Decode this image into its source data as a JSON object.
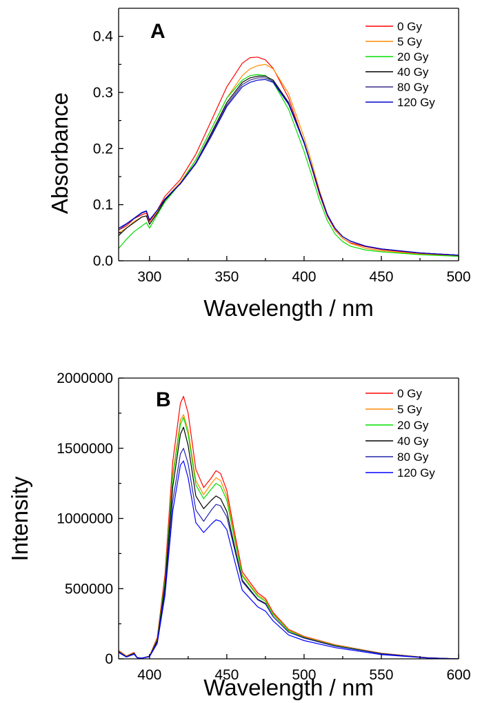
{
  "chart_data": [
    {
      "type": "line",
      "panel_label": "A",
      "xlabel": "Wavelength / nm",
      "ylabel": "Absorbance",
      "xlim": [
        280,
        500
      ],
      "ylim": [
        0,
        0.45
      ],
      "x_ticks": [
        300,
        350,
        400,
        450,
        500
      ],
      "x_tick_labels": [
        "300",
        "350",
        "400",
        "450",
        "500"
      ],
      "y_ticks": [
        0.0,
        0.1,
        0.2,
        0.3,
        0.4
      ],
      "y_tick_labels": [
        "0.0",
        "0.1",
        "0.2",
        "0.3",
        "0.4"
      ],
      "legend_position": "top-right",
      "x": [
        280,
        285,
        290,
        295,
        298,
        300,
        305,
        310,
        320,
        330,
        340,
        350,
        360,
        365,
        370,
        375,
        380,
        390,
        400,
        405,
        410,
        415,
        420,
        425,
        430,
        440,
        450,
        475,
        500
      ],
      "series": [
        {
          "name": "0 Gy",
          "color": "#ff0000",
          "values": [
            0.055,
            0.062,
            0.075,
            0.082,
            0.085,
            0.07,
            0.09,
            0.115,
            0.145,
            0.19,
            0.25,
            0.31,
            0.352,
            0.362,
            0.363,
            0.358,
            0.343,
            0.29,
            0.21,
            0.165,
            0.118,
            0.08,
            0.055,
            0.04,
            0.032,
            0.025,
            0.02,
            0.013,
            0.009
          ]
        },
        {
          "name": "5 Gy",
          "color": "#ff8c00",
          "values": [
            0.05,
            0.058,
            0.07,
            0.078,
            0.08,
            0.065,
            0.088,
            0.11,
            0.14,
            0.18,
            0.235,
            0.29,
            0.33,
            0.342,
            0.348,
            0.35,
            0.342,
            0.298,
            0.22,
            0.175,
            0.125,
            0.083,
            0.056,
            0.04,
            0.031,
            0.022,
            0.018,
            0.012,
            0.008
          ]
        },
        {
          "name": "20 Gy",
          "color": "#00dd00",
          "values": [
            0.022,
            0.038,
            0.052,
            0.062,
            0.068,
            0.058,
            0.082,
            0.105,
            0.138,
            0.18,
            0.235,
            0.29,
            0.322,
            0.33,
            0.332,
            0.33,
            0.318,
            0.27,
            0.195,
            0.152,
            0.108,
            0.072,
            0.048,
            0.034,
            0.026,
            0.019,
            0.016,
            0.011,
            0.008
          ]
        },
        {
          "name": "40 Gy",
          "color": "#000000",
          "values": [
            0.045,
            0.058,
            0.068,
            0.078,
            0.08,
            0.065,
            0.085,
            0.108,
            0.138,
            0.175,
            0.228,
            0.282,
            0.318,
            0.326,
            0.329,
            0.329,
            0.322,
            0.282,
            0.212,
            0.168,
            0.122,
            0.083,
            0.058,
            0.043,
            0.035,
            0.026,
            0.021,
            0.014,
            0.01
          ]
        },
        {
          "name": "80 Gy",
          "color": "#3a2a8a",
          "values": [
            0.055,
            0.065,
            0.075,
            0.085,
            0.088,
            0.072,
            0.09,
            0.11,
            0.138,
            0.175,
            0.225,
            0.278,
            0.314,
            0.322,
            0.326,
            0.326,
            0.32,
            0.28,
            0.21,
            0.167,
            0.121,
            0.082,
            0.058,
            0.043,
            0.035,
            0.026,
            0.021,
            0.014,
            0.01
          ]
        },
        {
          "name": "120 Gy",
          "color": "#0000cc",
          "values": [
            0.058,
            0.066,
            0.076,
            0.086,
            0.089,
            0.073,
            0.09,
            0.11,
            0.137,
            0.173,
            0.222,
            0.275,
            0.31,
            0.318,
            0.322,
            0.323,
            0.318,
            0.279,
            0.21,
            0.167,
            0.121,
            0.082,
            0.058,
            0.043,
            0.035,
            0.026,
            0.021,
            0.014,
            0.01
          ]
        }
      ]
    },
    {
      "type": "line",
      "panel_label": "B",
      "xlabel": "Wavelength / nm",
      "ylabel": "Intensity",
      "xlim": [
        380,
        600
      ],
      "ylim": [
        0,
        2000000
      ],
      "x_ticks": [
        400,
        450,
        500,
        550,
        600
      ],
      "x_tick_labels": [
        "400",
        "450",
        "500",
        "550",
        "600"
      ],
      "y_ticks": [
        0,
        500000,
        1000000,
        1500000,
        2000000
      ],
      "y_tick_labels": [
        "0",
        "500000",
        "1000000",
        "1500000",
        "2000000"
      ],
      "legend_position": "top-right",
      "x": [
        380,
        385,
        390,
        392,
        395,
        400,
        405,
        410,
        415,
        420,
        422,
        425,
        430,
        435,
        440,
        443,
        446,
        450,
        455,
        460,
        470,
        475,
        480,
        490,
        500,
        520,
        550,
        580,
        600
      ],
      "series": [
        {
          "name": "0 Gy",
          "color": "#ff0000",
          "values": [
            60000,
            20000,
            45000,
            10000,
            5000,
            20000,
            150000,
            600000,
            1400000,
            1820000,
            1870000,
            1750000,
            1350000,
            1220000,
            1290000,
            1340000,
            1320000,
            1200000,
            900000,
            620000,
            470000,
            430000,
            330000,
            210000,
            160000,
            100000,
            40000,
            8000,
            0
          ]
        },
        {
          "name": "5 Gy",
          "color": "#ff8c00",
          "values": [
            55000,
            18000,
            40000,
            9000,
            5000,
            18000,
            140000,
            560000,
            1310000,
            1700000,
            1740000,
            1630000,
            1270000,
            1170000,
            1250000,
            1290000,
            1270000,
            1160000,
            870000,
            600000,
            455000,
            420000,
            322000,
            205000,
            157000,
            98000,
            39000,
            8000,
            0
          ]
        },
        {
          "name": "20 Gy",
          "color": "#00dd00",
          "values": [
            52000,
            16000,
            40000,
            9000,
            5000,
            18000,
            135000,
            550000,
            1290000,
            1670000,
            1720000,
            1600000,
            1240000,
            1140000,
            1210000,
            1250000,
            1230000,
            1130000,
            850000,
            590000,
            445000,
            410000,
            315000,
            200000,
            152000,
            95000,
            38000,
            7000,
            0
          ]
        },
        {
          "name": "40 Gy",
          "color": "#000000",
          "values": [
            50000,
            15000,
            38000,
            8000,
            5000,
            17000,
            130000,
            520000,
            1220000,
            1600000,
            1650000,
            1520000,
            1160000,
            1070000,
            1130000,
            1160000,
            1140000,
            1050000,
            800000,
            560000,
            425000,
            395000,
            300000,
            190000,
            150000,
            92000,
            37000,
            7000,
            0
          ]
        },
        {
          "name": "80 Gy",
          "color": "#2222aa",
          "values": [
            48000,
            14000,
            35000,
            8000,
            5000,
            16000,
            120000,
            480000,
            1120000,
            1460000,
            1500000,
            1390000,
            1060000,
            980000,
            1060000,
            1100000,
            1090000,
            1010000,
            780000,
            550000,
            420000,
            390000,
            300000,
            190000,
            148000,
            90000,
            36000,
            7000,
            0
          ]
        },
        {
          "name": "120 Gy",
          "color": "#0000ff",
          "values": [
            45000,
            13000,
            33000,
            7000,
            5000,
            15000,
            110000,
            450000,
            1050000,
            1380000,
            1410000,
            1290000,
            970000,
            900000,
            960000,
            990000,
            980000,
            920000,
            700000,
            490000,
            370000,
            340000,
            270000,
            170000,
            130000,
            80000,
            30000,
            6000,
            0
          ]
        }
      ]
    }
  ]
}
